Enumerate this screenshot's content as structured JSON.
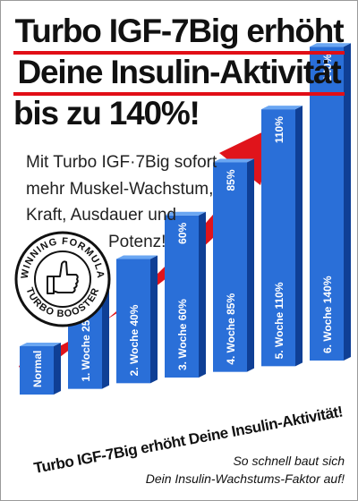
{
  "headline": {
    "line1": "Turbo IGF-7Big erhöht",
    "line2": "Deine Insulin-Aktivität",
    "line3": "bis zu 140%!"
  },
  "subtext": {
    "line1": "Mit Turbo IGF·7Big sofort",
    "line2": "mehr Muskel-Wachstum,",
    "line3": "Kraft, Ausdauer und",
    "line4": "Potenz!"
  },
  "badge": {
    "top_text": "WINNING FORMULA",
    "bottom_text": "TURBO BOOSTER",
    "icon": "thumbs-up-icon"
  },
  "footer": {
    "line1": "So schnell baut sich",
    "line2": "Dein Insulin-Wachstums-Faktor auf!"
  },
  "colors": {
    "bar_front": "#2a6fd8",
    "bar_side": "#0f3f95",
    "bar_top": "#6aa6f2",
    "arrow": "#e0141b",
    "rule": "#e10e16"
  },
  "chart_data": {
    "type": "bar",
    "categories": [
      "Normal",
      "1. Woche 25%",
      "2. Woche 40%",
      "3. Woche 60%",
      "4. Woche 85%",
      "5. Woche 110%",
      "6. Woche 140%"
    ],
    "values": [
      0,
      25,
      40,
      60,
      85,
      110,
      140
    ],
    "value_labels": [
      "",
      "",
      "",
      "60%",
      "85%",
      "110%",
      "140%"
    ],
    "baseline_caption": "Turbo IGF-7Big erhöht Deine Insulin-Aktivität!",
    "title": "",
    "ylim": [
      0,
      140
    ],
    "grid": false,
    "legend": "none",
    "trend_arrow": true
  }
}
